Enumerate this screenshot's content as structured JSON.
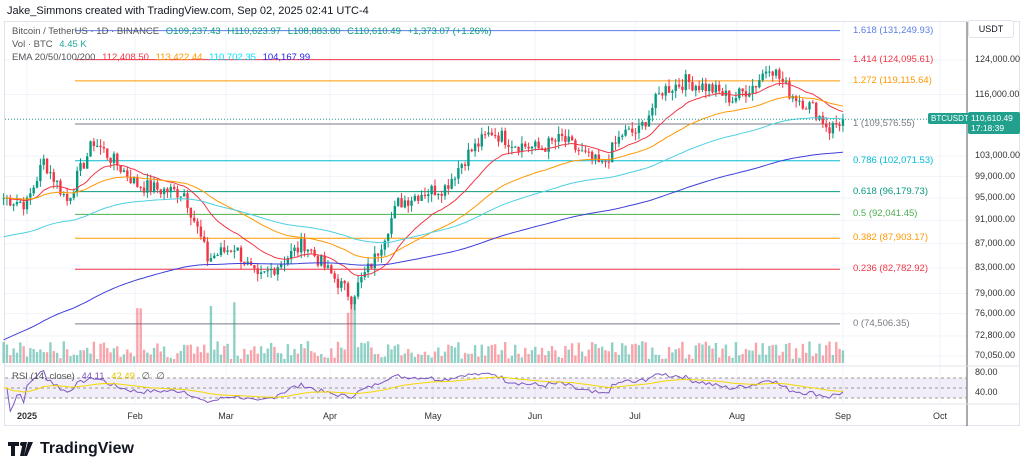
{
  "header": {
    "credit": "Jake_Simmons created with TradingView.com, Sep 02, 2025 02:41 UTC-4"
  },
  "legend": {
    "symbol": "Bitcoin / TetherUS · 1D · BINANCE",
    "o": "O109,237.43",
    "h": "H110,623.97",
    "l": "L108,883.80",
    "c": "C110,610.49",
    "chg": "+1,373.07 (+1.26%)",
    "vol_label": "Vol · BTC",
    "vol_value": "4.45 K",
    "ema_label": "EMA 20/50/100/200",
    "ema20": "112,408.50",
    "ema50": "113,422.44",
    "ema100": "110,702.35",
    "ema200": "104,167.99",
    "rsi_label": "RSI (14, close)",
    "rsi_value": "44.11",
    "rsi_ma": "42.49",
    "na1": "∅",
    "na2": "∅"
  },
  "price_axis": {
    "unit": "USDT",
    "labels": [
      "124,000.00",
      "116,000.00",
      "103,000.00",
      "99,000.00",
      "95,000.00",
      "91,000.00",
      "87,000.00",
      "83,000.00",
      "79,000.00",
      "76,000.00",
      "72,800.00",
      "70,050.00"
    ],
    "rsi_labels": [
      "80.00",
      "40.00"
    ]
  },
  "last_price": {
    "ticker": "BTCUSDT",
    "price": "110,610.49",
    "countdown": "17:18:39"
  },
  "fib_levels": [
    {
      "label": "1.618 (131,249.93)",
      "price": 131249.93,
      "color": "#5b7de6"
    },
    {
      "label": "1.414 (124,095.61)",
      "price": 124095.61,
      "color": "#f23645"
    },
    {
      "label": "1.272 (119,115.64)",
      "price": 119115.64,
      "color": "#ff9800"
    },
    {
      "label": "1 (109,576.55)",
      "price": 109576.55,
      "color": "#787b86"
    },
    {
      "label": "0.786 (102,071.53)",
      "price": 102071.53,
      "color": "#00bcd4"
    },
    {
      "label": "0.618 (96,179.73)",
      "price": 96179.73,
      "color": "#089981"
    },
    {
      "label": "0.5 (92,041.45)",
      "price": 92041.45,
      "color": "#4caf50"
    },
    {
      "label": "0.382 (87,903.17)",
      "price": 87903.17,
      "color": "#ff9800"
    },
    {
      "label": "0.236 (82,782.92)",
      "price": 82782.92,
      "color": "#f23645"
    },
    {
      "label": "0 (74,506.35)",
      "price": 74506.35,
      "color": "#787b86"
    }
  ],
  "time_axis": [
    "2025",
    "Feb",
    "Mar",
    "Apr",
    "May",
    "Jun",
    "Jul",
    "Aug",
    "Sep",
    "Oct"
  ],
  "brand": "TradingView",
  "colors": {
    "up": "#089981",
    "down": "#f23645",
    "ema20": "#f23645",
    "ema50": "#ff9800",
    "ema100": "#4dd0e1",
    "ema200": "#3f3fd9",
    "rsi": "#7e57c2",
    "rsi_ma": "#f5d800"
  },
  "chart_data": {
    "type": "candlestick",
    "note": "approximate weekly closes (day index from Jan 1 2025, USDT)",
    "anchors": [
      [
        -7,
        95000
      ],
      [
        0,
        94000
      ],
      [
        5,
        102000
      ],
      [
        12,
        94500
      ],
      [
        20,
        106000
      ],
      [
        26,
        102000
      ],
      [
        33,
        97500
      ],
      [
        40,
        96500
      ],
      [
        47,
        96000
      ],
      [
        54,
        84500
      ],
      [
        62,
        86500
      ],
      [
        69,
        81000
      ],
      [
        76,
        84000
      ],
      [
        83,
        87000
      ],
      [
        90,
        82500
      ],
      [
        97,
        78500
      ],
      [
        104,
        84500
      ],
      [
        111,
        94000
      ],
      [
        118,
        96000
      ],
      [
        125,
        97000
      ],
      [
        132,
        103500
      ],
      [
        139,
        108000
      ],
      [
        146,
        105500
      ],
      [
        153,
        104500
      ],
      [
        160,
        106500
      ],
      [
        167,
        103000
      ],
      [
        172,
        101000
      ],
      [
        178,
        107500
      ],
      [
        183,
        108000
      ],
      [
        190,
        117000
      ],
      [
        197,
        119000
      ],
      [
        204,
        117500
      ],
      [
        211,
        115000
      ],
      [
        218,
        118500
      ],
      [
        222,
        123000
      ],
      [
        228,
        116500
      ],
      [
        235,
        113000
      ],
      [
        240,
        108500
      ],
      [
        244,
        110610
      ]
    ]
  }
}
